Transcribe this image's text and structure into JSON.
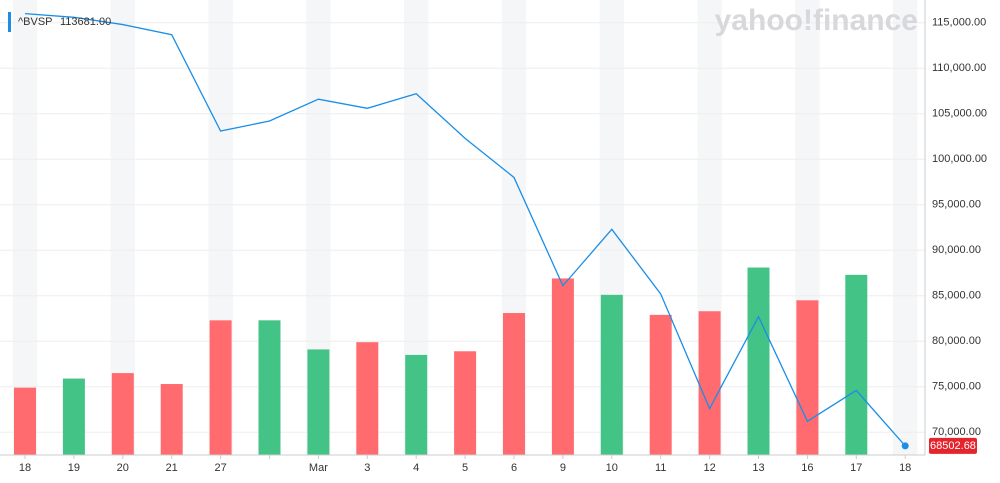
{
  "chart_data": {
    "type": "line",
    "ticker": "^BVSP",
    "last_label": "113681.00",
    "brand": "yahoo!finance",
    "categories": [
      "18",
      "19",
      "20",
      "21",
      "27",
      null,
      "Mar",
      "3",
      "4",
      "5",
      "6",
      "9",
      "10",
      "11",
      "12",
      "13",
      "16",
      "17",
      "18"
    ],
    "series": [
      {
        "name": "^BVSP",
        "color": "#1a8ee8",
        "axis": "y",
        "values": [
          116000,
          115600,
          114800,
          113681,
          103100,
          104200,
          106600,
          105600,
          107200,
          102300,
          98000,
          86100,
          92300,
          85200,
          72600,
          82700,
          71200,
          74600,
          68502.68
        ]
      },
      {
        "name": "Volume",
        "axis": "y2",
        "values": [
          37,
          42,
          45,
          39,
          74,
          74,
          58,
          62,
          55,
          57,
          78,
          97,
          88,
          77,
          79,
          103,
          85,
          99,
          null
        ],
        "colors": [
          "#ff6b6f",
          "#43c486",
          "#ff6b6f",
          "#ff6b6f",
          "#ff6b6f",
          "#43c486",
          "#43c486",
          "#ff6b6f",
          "#43c486",
          "#ff6b6f",
          "#ff6b6f",
          "#ff6b6f",
          "#43c486",
          "#ff6b6f",
          "#ff6b6f",
          "#43c486",
          "#ff6b6f",
          "#43c486",
          null
        ]
      }
    ],
    "price_label": "68502.68",
    "ylim": [
      67500,
      117500
    ],
    "yticks": [
      {
        "value": 70000,
        "label": "70,000.00"
      },
      {
        "value": 75000,
        "label": "75,000.00"
      },
      {
        "value": 80000,
        "label": "80,000.00"
      },
      {
        "value": 85000,
        "label": "85,000.00"
      },
      {
        "value": 90000,
        "label": "90,000.00"
      },
      {
        "value": 95000,
        "label": "95,000.00"
      },
      {
        "value": 100000,
        "label": "100,000.00"
      },
      {
        "value": 105000,
        "label": "105,000.00"
      },
      {
        "value": 110000,
        "label": "110,000.00"
      },
      {
        "value": 115000,
        "label": "115,000.00"
      }
    ],
    "y2lim": [
      0,
      250
    ],
    "grid": true
  }
}
